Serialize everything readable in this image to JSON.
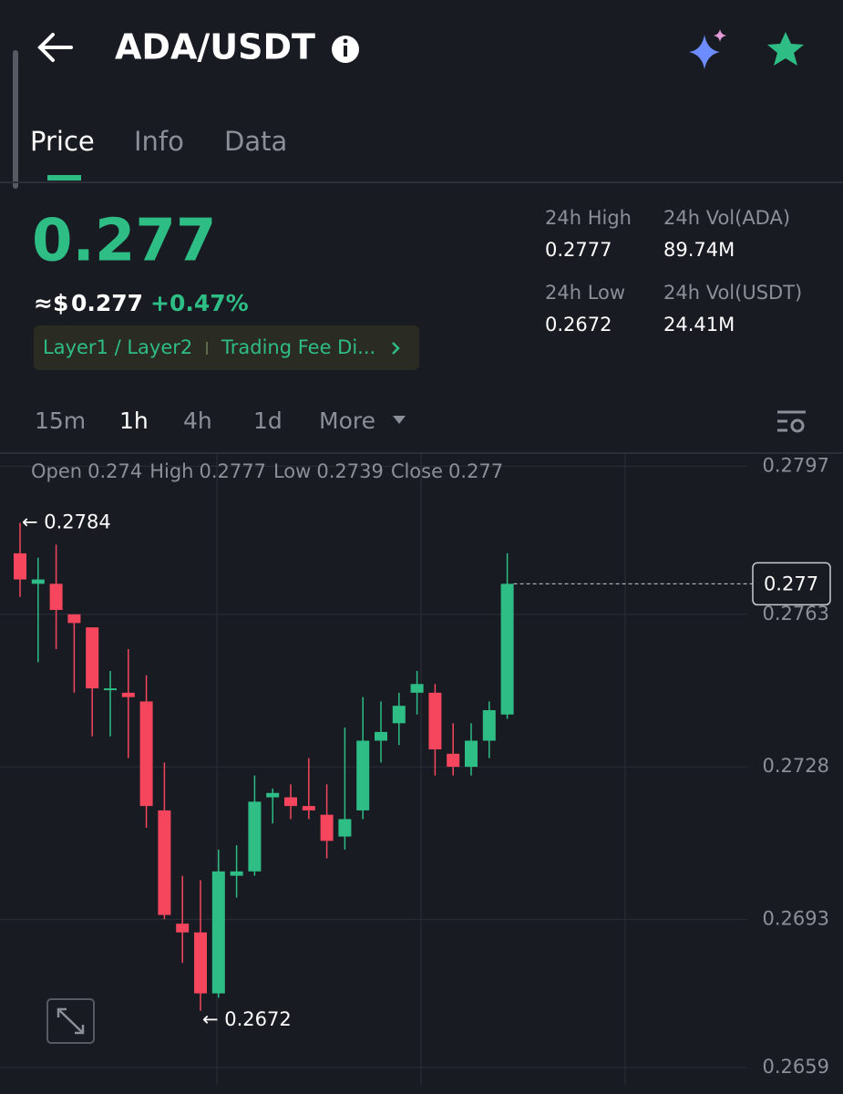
{
  "header": {
    "title": "ADA/USDT"
  },
  "tabs": [
    "Price",
    "Info",
    "Data"
  ],
  "price": {
    "last": "0.277",
    "usd_prefix": "≈$",
    "usd": "0.277",
    "change": "+0.47%",
    "tags": [
      "Layer1 / Layer2",
      "Trading Fee Di..."
    ]
  },
  "stats": [
    {
      "label": "24h High",
      "value": "0.2777"
    },
    {
      "label": "24h Vol(ADA)",
      "value": "89.74M"
    },
    {
      "label": "24h Low",
      "value": "0.2672"
    },
    {
      "label": "24h Vol(USDT)",
      "value": "24.41M"
    }
  ],
  "intervals": [
    "15m",
    "1h",
    "4h",
    "1d",
    "More"
  ],
  "chart_data": {
    "type": "candlestick",
    "ohlc": [
      {
        "label": "Open",
        "value": 0.274
      },
      {
        "label": "High",
        "value": 0.2777
      },
      {
        "label": "Low",
        "value": 0.2739
      },
      {
        "label": "Close",
        "value": 0.277
      }
    ],
    "open": [
      0.2777,
      0.277,
      0.277,
      0.2763,
      0.276,
      0.2746,
      0.2745,
      0.2743,
      0.2718,
      0.2692,
      0.269,
      0.2676,
      0.2703,
      0.2704,
      0.2721,
      0.2721,
      0.2719,
      0.2717,
      0.2712,
      0.2718,
      0.2734,
      0.2738,
      0.2745,
      0.2745,
      0.2731,
      0.2728,
      0.2734,
      0.274
    ],
    "high": [
      0.2784,
      0.2776,
      0.2779,
      0.2763,
      0.276,
      0.275,
      0.2755,
      0.2749,
      0.2729,
      0.2703,
      0.2702,
      0.2709,
      0.271,
      0.2726,
      0.2723,
      0.2724,
      0.273,
      0.2724,
      0.2737,
      0.2744,
      0.2743,
      0.2745,
      0.275,
      0.2747,
      0.2738,
      0.2738,
      0.2743,
      0.2777
    ],
    "low": [
      0.2767,
      0.2752,
      0.2755,
      0.2745,
      0.2735,
      0.2735,
      0.273,
      0.2714,
      0.2693,
      0.2683,
      0.2672,
      0.2675,
      0.2698,
      0.2703,
      0.2715,
      0.2716,
      0.2716,
      0.2707,
      0.2709,
      0.2716,
      0.2729,
      0.2733,
      0.274,
      0.2726,
      0.2726,
      0.2726,
      0.273,
      0.2739
    ],
    "close": [
      0.2771,
      0.2771,
      0.2764,
      0.2761,
      0.2746,
      0.2746,
      0.2744,
      0.2719,
      0.2694,
      0.269,
      0.2676,
      0.2704,
      0.2704,
      0.272,
      0.2722,
      0.2719,
      0.2718,
      0.2711,
      0.2716,
      0.2734,
      0.2736,
      0.2742,
      0.2747,
      0.2732,
      0.2728,
      0.2734,
      0.2741,
      0.277
    ],
    "up_color": "#2ebd85",
    "down_color": "#f6465d",
    "ylim": [
      0.2655,
      0.28
    ],
    "yticks": [
      0.2659,
      0.2693,
      0.2728,
      0.2763,
      0.2797
    ],
    "grid": true,
    "high_label": "← 0.2784",
    "low_label": "← 0.2672",
    "last_price": 0.277
  }
}
